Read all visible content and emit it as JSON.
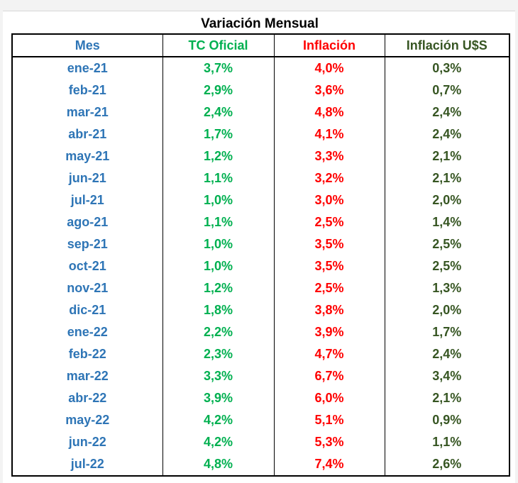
{
  "title": "Variación Mensual",
  "colors": {
    "mes": "#2e75b6",
    "tc_oficial": "#00b050",
    "inflacion": "#ff0000",
    "inflacion_usd": "#375623"
  },
  "headers": [
    "Mes",
    "TC Oficial",
    "Inflación",
    "Inflación U$S"
  ],
  "rows": [
    [
      "ene-21",
      "3,7%",
      "4,0%",
      "0,3%"
    ],
    [
      "feb-21",
      "2,9%",
      "3,6%",
      "0,7%"
    ],
    [
      "mar-21",
      "2,4%",
      "4,8%",
      "2,4%"
    ],
    [
      "abr-21",
      "1,7%",
      "4,1%",
      "2,4%"
    ],
    [
      "may-21",
      "1,2%",
      "3,3%",
      "2,1%"
    ],
    [
      "jun-21",
      "1,1%",
      "3,2%",
      "2,1%"
    ],
    [
      "jul-21",
      "1,0%",
      "3,0%",
      "2,0%"
    ],
    [
      "ago-21",
      "1,1%",
      "2,5%",
      "1,4%"
    ],
    [
      "sep-21",
      "1,0%",
      "3,5%",
      "2,5%"
    ],
    [
      "oct-21",
      "1,0%",
      "3,5%",
      "2,5%"
    ],
    [
      "nov-21",
      "1,2%",
      "2,5%",
      "1,3%"
    ],
    [
      "dic-21",
      "1,8%",
      "3,8%",
      "2,0%"
    ],
    [
      "ene-22",
      "2,2%",
      "3,9%",
      "1,7%"
    ],
    [
      "feb-22",
      "2,3%",
      "4,7%",
      "2,4%"
    ],
    [
      "mar-22",
      "3,3%",
      "6,7%",
      "3,4%"
    ],
    [
      "abr-22",
      "3,9%",
      "6,0%",
      "2,1%"
    ],
    [
      "may-22",
      "4,2%",
      "5,1%",
      "0,9%"
    ],
    [
      "jun-22",
      "4,2%",
      "5,3%",
      "1,1%"
    ],
    [
      "jul-22",
      "4,8%",
      "7,4%",
      "2,6%"
    ]
  ]
}
